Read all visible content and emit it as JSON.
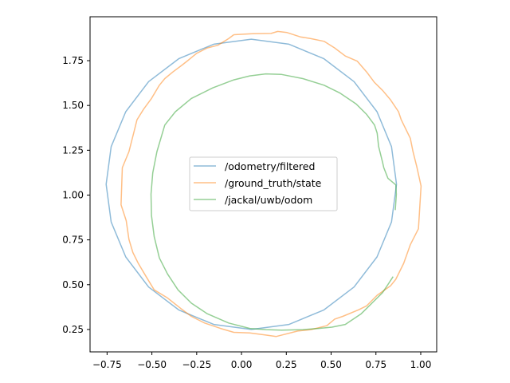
{
  "chart_data": {
    "type": "line",
    "title": "",
    "xlabel": "",
    "ylabel": "",
    "xlim": [
      -0.845,
      1.089
    ],
    "ylim": [
      0.125,
      1.995
    ],
    "grid": false,
    "legend_placement": "center",
    "xticks": [
      -0.75,
      -0.5,
      -0.25,
      0.0,
      0.25,
      0.5,
      0.75,
      1.0
    ],
    "xtick_labels": [
      "−0.75",
      "−0.50",
      "−0.25",
      "0.00",
      "0.25",
      "0.50",
      "0.75",
      "1.00"
    ],
    "yticks": [
      0.25,
      0.5,
      0.75,
      1.0,
      1.25,
      1.5,
      1.75
    ],
    "ytick_labels": [
      "0.25",
      "0.50",
      "0.75",
      "1.00",
      "1.25",
      "1.50",
      "1.75"
    ],
    "series": [
      {
        "name": "/odometry/filtered",
        "color": "#1f77b4",
        "points": [
          [
            0.865,
            1.06
          ],
          [
            0.837,
            1.27
          ],
          [
            0.756,
            1.465
          ],
          [
            0.628,
            1.633
          ],
          [
            0.46,
            1.761
          ],
          [
            0.265,
            1.842
          ],
          [
            0.055,
            1.87
          ],
          [
            -0.155,
            1.842
          ],
          [
            -0.35,
            1.761
          ],
          [
            -0.518,
            1.633
          ],
          [
            -0.646,
            1.465
          ],
          [
            -0.727,
            1.27
          ],
          [
            -0.755,
            1.06
          ],
          [
            -0.727,
            0.85
          ],
          [
            -0.646,
            0.655
          ],
          [
            -0.518,
            0.487
          ],
          [
            -0.35,
            0.359
          ],
          [
            -0.155,
            0.278
          ],
          [
            0.055,
            0.25
          ],
          [
            0.265,
            0.278
          ],
          [
            0.46,
            0.359
          ],
          [
            0.628,
            0.487
          ],
          [
            0.756,
            0.655
          ],
          [
            0.837,
            0.85
          ],
          [
            0.865,
            1.06
          ]
        ]
      },
      {
        "name": "/ground_truth/state",
        "color": "#ff7f0e",
        "points": [
          [
            -0.043,
            1.895
          ],
          [
            0.061,
            1.9
          ],
          [
            0.165,
            1.902
          ],
          [
            0.202,
            1.913
          ],
          [
            0.254,
            1.907
          ],
          [
            0.328,
            1.883
          ],
          [
            0.387,
            1.873
          ],
          [
            0.461,
            1.858
          ],
          [
            0.52,
            1.821
          ],
          [
            0.579,
            1.776
          ],
          [
            0.646,
            1.747
          ],
          [
            0.698,
            1.687
          ],
          [
            0.742,
            1.628
          ],
          [
            0.787,
            1.584
          ],
          [
            0.831,
            1.532
          ],
          [
            0.876,
            1.465
          ],
          [
            0.891,
            1.42
          ],
          [
            0.942,
            1.317
          ],
          [
            0.957,
            1.242
          ],
          [
            0.979,
            1.153
          ],
          [
            1.002,
            1.05
          ],
          [
            0.987,
            0.812
          ],
          [
            0.942,
            0.723
          ],
          [
            0.905,
            0.619
          ],
          [
            0.861,
            0.53
          ],
          [
            0.831,
            0.493
          ],
          [
            0.757,
            0.441
          ],
          [
            0.698,
            0.382
          ],
          [
            0.654,
            0.36
          ],
          [
            0.565,
            0.323
          ],
          [
            0.52,
            0.308
          ],
          [
            0.476,
            0.271
          ],
          [
            0.387,
            0.249
          ],
          [
            0.313,
            0.241
          ],
          [
            0.194,
            0.211
          ],
          [
            0.135,
            0.219
          ],
          [
            0.046,
            0.231
          ],
          [
            -0.043,
            0.234
          ],
          [
            -0.117,
            0.256
          ],
          [
            -0.206,
            0.286
          ],
          [
            -0.28,
            0.323
          ],
          [
            -0.339,
            0.367
          ],
          [
            -0.413,
            0.426
          ],
          [
            -0.487,
            0.471
          ],
          [
            -0.532,
            0.545
          ],
          [
            -0.576,
            0.619
          ],
          [
            -0.606,
            0.679
          ],
          [
            -0.628,
            0.753
          ],
          [
            -0.643,
            0.857
          ],
          [
            -0.672,
            0.946
          ],
          [
            -0.665,
            1.153
          ],
          [
            -0.628,
            1.242
          ],
          [
            -0.598,
            1.361
          ],
          [
            -0.583,
            1.42
          ],
          [
            -0.546,
            1.48
          ],
          [
            -0.502,
            1.539
          ],
          [
            -0.458,
            1.613
          ],
          [
            -0.428,
            1.65
          ],
          [
            -0.383,
            1.687
          ],
          [
            -0.332,
            1.725
          ],
          [
            -0.295,
            1.754
          ],
          [
            -0.25,
            1.791
          ],
          [
            -0.191,
            1.821
          ],
          [
            -0.132,
            1.836
          ],
          [
            -0.072,
            1.873
          ],
          [
            -0.043,
            1.895
          ]
        ]
      },
      {
        "name": "/jackal/uwb/odom",
        "color": "#2ca02c",
        "points": [
          [
            0.846,
            0.545
          ],
          [
            0.817,
            0.501
          ],
          [
            0.787,
            0.456
          ],
          [
            0.728,
            0.397
          ],
          [
            0.668,
            0.338
          ],
          [
            0.579,
            0.278
          ],
          [
            0.505,
            0.263
          ],
          [
            0.431,
            0.256
          ],
          [
            0.342,
            0.249
          ],
          [
            0.224,
            0.246
          ],
          [
            0.135,
            0.249
          ],
          [
            0.046,
            0.256
          ],
          [
            -0.072,
            0.286
          ],
          [
            -0.191,
            0.338
          ],
          [
            -0.28,
            0.397
          ],
          [
            -0.354,
            0.471
          ],
          [
            -0.413,
            0.56
          ],
          [
            -0.458,
            0.649
          ],
          [
            -0.487,
            0.768
          ],
          [
            -0.502,
            0.886
          ],
          [
            -0.505,
            1.005
          ],
          [
            -0.495,
            1.124
          ],
          [
            -0.472,
            1.242
          ],
          [
            -0.428,
            1.391
          ],
          [
            -0.369,
            1.465
          ],
          [
            -0.28,
            1.539
          ],
          [
            -0.161,
            1.598
          ],
          [
            -0.043,
            1.643
          ],
          [
            0.046,
            1.665
          ],
          [
            0.135,
            1.676
          ],
          [
            0.224,
            1.673
          ],
          [
            0.342,
            1.65
          ],
          [
            0.461,
            1.613
          ],
          [
            0.55,
            1.569
          ],
          [
            0.639,
            1.509
          ],
          [
            0.698,
            1.45
          ],
          [
            0.742,
            1.391
          ],
          [
            0.757,
            1.346
          ],
          [
            0.765,
            1.272
          ],
          [
            0.787,
            1.183
          ],
          [
            0.794,
            1.153
          ],
          [
            0.817,
            1.094
          ],
          [
            0.861,
            1.057
          ],
          [
            0.864,
            1.005
          ],
          [
            0.858,
            0.916
          ]
        ]
      }
    ]
  }
}
